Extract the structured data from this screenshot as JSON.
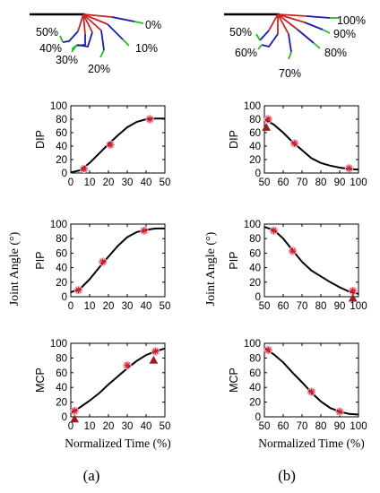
{
  "figure": {
    "column_labels": [
      "(a)",
      "(b)"
    ],
    "shared_ylabel": "Joint Angle (°)",
    "colors": {
      "curve": "#000000",
      "star": "#cc2222",
      "circle": "#f2a0c8",
      "triangle": "#9b1c1c"
    }
  },
  "finger_diagrams": [
    {
      "labels": [
        "0%",
        "10%",
        "20%",
        "30%",
        "40%",
        "50%"
      ]
    },
    {
      "labels": [
        "100%",
        "90%",
        "80%",
        "70%",
        "60%",
        "50%"
      ]
    }
  ],
  "chart_data": [
    {
      "type": "line",
      "panel": "DIP",
      "column": "a",
      "xlabel": "",
      "ylabel": "DIP",
      "xlim": [
        0,
        50
      ],
      "ylim": [
        0,
        100
      ],
      "xticks": [
        0,
        10,
        20,
        30,
        40,
        50
      ],
      "yticks": [
        0,
        20,
        40,
        60,
        80,
        100
      ],
      "curve": {
        "x": [
          0,
          5,
          10,
          15,
          20,
          25,
          30,
          35,
          40,
          45,
          50
        ],
        "y": [
          1,
          4,
          15,
          29,
          43,
          56,
          68,
          76,
          80,
          81,
          81
        ]
      },
      "stars": [
        [
          7,
          6
        ],
        [
          21,
          42
        ],
        [
          42,
          80
        ]
      ],
      "circles": [
        [
          7,
          6
        ],
        [
          21,
          42
        ],
        [
          42,
          80
        ]
      ],
      "triangles": []
    },
    {
      "type": "line",
      "panel": "DIP",
      "column": "b",
      "xlabel": "",
      "ylabel": "DIP",
      "xlim": [
        50,
        100
      ],
      "ylim": [
        0,
        100
      ],
      "xticks": [
        50,
        60,
        70,
        80,
        90,
        100
      ],
      "yticks": [
        0,
        20,
        40,
        60,
        80,
        100
      ],
      "curve": {
        "x": [
          50,
          55,
          60,
          65,
          70,
          75,
          80,
          85,
          90,
          95,
          100
        ],
        "y": [
          80,
          72,
          60,
          46,
          34,
          22,
          15,
          11,
          8,
          6,
          5
        ]
      },
      "stars": [
        [
          52,
          80
        ],
        [
          66,
          44
        ],
        [
          95,
          7
        ]
      ],
      "circles": [
        [
          52,
          80
        ],
        [
          66,
          44
        ],
        [
          95,
          7
        ]
      ],
      "triangles": [
        [
          51,
          68
        ]
      ]
    },
    {
      "type": "line",
      "panel": "PIP",
      "column": "a",
      "xlabel": "",
      "ylabel": "PIP",
      "xlim": [
        0,
        50
      ],
      "ylim": [
        0,
        100
      ],
      "xticks": [
        0,
        10,
        20,
        30,
        40,
        50
      ],
      "yticks": [
        0,
        20,
        40,
        60,
        80,
        100
      ],
      "curve": {
        "x": [
          0,
          5,
          10,
          15,
          20,
          25,
          30,
          35,
          40,
          45,
          50
        ],
        "y": [
          6,
          11,
          24,
          40,
          55,
          70,
          82,
          89,
          92,
          94,
          94
        ]
      },
      "stars": [
        [
          4,
          9
        ],
        [
          17,
          48
        ],
        [
          39,
          91
        ]
      ],
      "circles": [
        [
          4,
          9
        ],
        [
          17,
          48
        ],
        [
          39,
          91
        ]
      ],
      "triangles": []
    },
    {
      "type": "line",
      "panel": "PIP",
      "column": "b",
      "xlabel": "",
      "ylabel": "PIP",
      "xlim": [
        50,
        100
      ],
      "ylim": [
        0,
        100
      ],
      "xticks": [
        50,
        60,
        70,
        80,
        90,
        100
      ],
      "yticks": [
        0,
        20,
        40,
        60,
        80,
        100
      ],
      "curve": {
        "x": [
          50,
          55,
          60,
          65,
          70,
          75,
          80,
          85,
          90,
          95,
          100
        ],
        "y": [
          96,
          92,
          80,
          64,
          48,
          36,
          28,
          20,
          13,
          7,
          4
        ]
      },
      "stars": [
        [
          55,
          91
        ],
        [
          65,
          63
        ],
        [
          97,
          8
        ]
      ],
      "circles": [
        [
          55,
          91
        ],
        [
          65,
          63
        ],
        [
          97,
          8
        ]
      ],
      "triangles": [
        [
          97,
          -2
        ]
      ]
    },
    {
      "type": "line",
      "panel": "MCP",
      "column": "a",
      "xlabel": "Normalized Time (%)",
      "ylabel": "MCP",
      "xlim": [
        0,
        50
      ],
      "ylim": [
        0,
        100
      ],
      "xticks": [
        0,
        10,
        20,
        30,
        40,
        50
      ],
      "yticks": [
        0,
        20,
        40,
        60,
        80,
        100
      ],
      "curve": {
        "x": [
          0,
          5,
          10,
          15,
          20,
          25,
          30,
          35,
          40,
          45,
          50
        ],
        "y": [
          5,
          13,
          22,
          32,
          44,
          55,
          66,
          76,
          84,
          89,
          93
        ]
      },
      "stars": [
        [
          2,
          8
        ],
        [
          30,
          70
        ],
        [
          45,
          89
        ]
      ],
      "circles": [
        [
          2,
          8
        ],
        [
          30,
          70
        ],
        [
          45,
          89
        ]
      ],
      "triangles": [
        [
          2,
          -3
        ],
        [
          44,
          77
        ]
      ]
    },
    {
      "type": "line",
      "panel": "MCP",
      "column": "b",
      "xlabel": "Normalized Time (%)",
      "ylabel": "MCP",
      "xlim": [
        50,
        100
      ],
      "ylim": [
        0,
        100
      ],
      "xticks": [
        50,
        60,
        70,
        80,
        90,
        100
      ],
      "yticks": [
        0,
        20,
        40,
        60,
        80,
        100
      ],
      "curve": {
        "x": [
          50,
          55,
          60,
          65,
          70,
          75,
          80,
          85,
          90,
          95,
          100
        ],
        "y": [
          93,
          85,
          74,
          60,
          47,
          33,
          21,
          12,
          7,
          4,
          3
        ]
      },
      "stars": [
        [
          52,
          91
        ],
        [
          75,
          34
        ],
        [
          90,
          7
        ]
      ],
      "circles": [
        [
          52,
          91
        ],
        [
          75,
          34
        ],
        [
          90,
          7
        ]
      ],
      "triangles": []
    }
  ]
}
